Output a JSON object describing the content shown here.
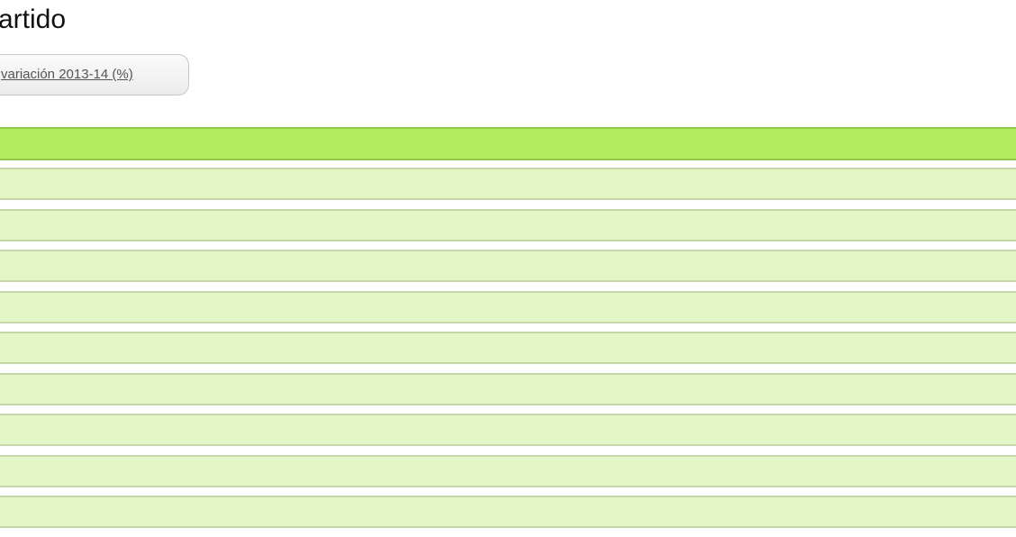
{
  "page": {
    "title": "artido"
  },
  "sort_button": {
    "label": "variación 2013-14 (%)"
  },
  "table": {
    "header_color": "#b2ec5d",
    "row_color": "#e2f6c6",
    "rows": [
      "",
      "",
      "",
      "",
      "",
      "",
      "",
      "",
      ""
    ]
  }
}
